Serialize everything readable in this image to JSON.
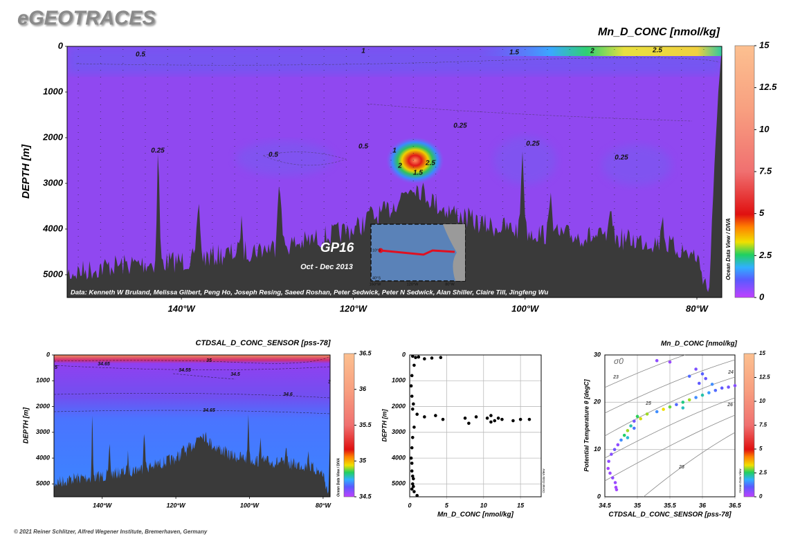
{
  "header": {
    "title": "eGEOTRACES",
    "credit": "© 2021 Reiner Schlitzer, Alfred Wegener Institute, Bremerhaven, Germany"
  },
  "chart_data": [
    {
      "type": "section",
      "title": "Mn_D_CONC [nmol/kg]",
      "ylabel": "DEPTH [m]",
      "xlim": [
        -153.3,
        -77.1
      ],
      "ylim": [
        5500,
        0
      ],
      "xticks": [
        {
          "value": -140,
          "label": "140°W"
        },
        {
          "value": -120,
          "label": "120°W"
        },
        {
          "value": -100,
          "label": "100°W"
        },
        {
          "value": -80,
          "label": "80°W"
        }
      ],
      "yticks": [
        0,
        1000,
        2000,
        3000,
        4000,
        5000
      ],
      "colorbar": {
        "lim": [
          0,
          15
        ],
        "ticks": [
          0,
          2.5,
          5,
          7.5,
          10,
          12.5,
          15
        ]
      },
      "contour_labels": [
        "0.5",
        "1",
        "1.5",
        "2",
        "2.5",
        "0.25",
        "0.25",
        "0.5",
        "0.5",
        "0.25",
        "0.25",
        "1",
        "2",
        "2.5",
        "1.5"
      ],
      "cruise": "GP16",
      "period": "Oct - Dec 2013",
      "credits": "Data: Kenneth W Bruland, Melissa Gilbert, Peng Ho, Joseph Resing, Saeed Roshan, Peter Sedwick, Peter N Sedwick, Alan Shiller, Claire Till, Jingfeng Wu",
      "software": "Ocean Data View / DIVA",
      "map": {
        "labels": [
          "10°S",
          "40°S",
          "160°W",
          "120°W",
          "80°W"
        ]
      }
    },
    {
      "type": "section",
      "title": "CTDSAL_D_CONC_SENSOR [pss-78]",
      "ylabel": "DEPTH [m]",
      "xlim": [
        -153.1,
        -78.1
      ],
      "ylim": [
        5500,
        0
      ],
      "xticks": [
        {
          "value": -140,
          "label": "140°W"
        },
        {
          "value": -120,
          "label": "120°W"
        },
        {
          "value": -100,
          "label": "100°W"
        },
        {
          "value": -80,
          "label": "80°W"
        }
      ],
      "yticks": [
        0,
        1000,
        2000,
        3000,
        4000,
        5000
      ],
      "colorbar": {
        "lim": [
          34.5,
          36.5
        ],
        "ticks": [
          34.5,
          35,
          35.5,
          36,
          36.5
        ]
      },
      "contour_labels": [
        "5",
        "34.65",
        "35",
        "34.55",
        "34.5",
        "34.6",
        "34.65",
        "3"
      ],
      "software": "Ocean Data View / DIVA"
    },
    {
      "type": "scatter",
      "xlabel": "Mn_D_CONC [nmol/kg]",
      "ylabel": "DEPTH [m]",
      "xlim": [
        0,
        17.8
      ],
      "ylim": [
        5500,
        0
      ],
      "xticks": [
        0,
        5,
        10,
        15
      ],
      "yticks": [
        0,
        1000,
        2000,
        3000,
        4000,
        5000
      ],
      "grid": true,
      "software": "Ocean Data View",
      "series": [
        {
          "color": "#000000",
          "x": [
            0.4,
            0.8,
            1.2,
            2.0,
            3.0,
            4.2,
            0.6,
            0.3,
            0.2,
            0.3,
            0.5,
            0.4,
            1.0,
            2.0,
            3.5,
            4.5,
            8,
            9,
            7.5,
            11,
            12,
            11.5,
            12.5,
            14,
            15,
            16.2,
            11,
            10.5,
            0.6,
            0.4,
            0.3,
            0.2,
            0.3,
            0.3,
            0.5,
            0.4,
            0.3,
            0.6,
            1.0,
            0.5,
            0.4
          ],
          "values": [
            50,
            100,
            80,
            150,
            120,
            100,
            400,
            800,
            1200,
            1600,
            1900,
            2100,
            2300,
            2400,
            2350,
            2500,
            2650,
            2400,
            2450,
            2350,
            2450,
            2550,
            2500,
            2550,
            2500,
            2500,
            2600,
            2450,
            2800,
            3200,
            3600,
            4000,
            4200,
            4500,
            4800,
            5000,
            5200,
            5300,
            5450,
            5100,
            4700
          ]
        }
      ]
    },
    {
      "type": "scatter",
      "title": "Mn_D_CONC [nmol/kg]",
      "xlabel": "CTDSAL_D_CONC_SENSOR [pss-78]",
      "ylabel": "Potential Temperature θ [degC]",
      "xlim": [
        34.5,
        36.5
      ],
      "ylim": [
        0,
        30
      ],
      "xticks": [
        34.5,
        35,
        35.5,
        36,
        36.5
      ],
      "yticks": [
        0,
        10,
        20,
        30
      ],
      "colorbar": {
        "lim": [
          0,
          15
        ],
        "ticks": [
          0,
          2.5,
          5,
          7.5,
          10,
          12.5,
          15
        ]
      },
      "sigma_label": "σ0",
      "contour_labels": [
        "23",
        "24",
        "25",
        "26",
        "28"
      ],
      "software": "Ocean Data View",
      "series": [
        {
          "x": [
            34.68,
            34.67,
            34.66,
            34.62,
            34.58,
            34.55,
            34.56,
            34.6,
            34.65,
            34.7,
            34.75,
            34.8,
            34.85,
            34.9,
            34.95,
            35.0,
            35.05,
            35.15,
            35.3,
            35.4,
            35.5,
            35.6,
            35.7,
            35.8,
            35.9,
            36.0,
            36.1,
            36.2,
            36.3,
            36.4,
            36.5,
            35.95,
            36.05,
            36.0,
            35.9,
            35.5,
            35.3,
            35.8,
            34.95,
            34.85,
            36.15,
            35.7
          ],
          "values": [
            1.5,
            2,
            3,
            4,
            5,
            6,
            7.5,
            9,
            10,
            11,
            12,
            13,
            14,
            15,
            16,
            17,
            16.5,
            17.5,
            18,
            18.5,
            19,
            19.5,
            20,
            20.5,
            21,
            21.5,
            22,
            22.5,
            23,
            23.2,
            23.5,
            24,
            25,
            26,
            27,
            28.5,
            28.8,
            25.5,
            14.5,
            12.5,
            23.8,
            18.8
          ],
          "color_values": [
            0.3,
            0.3,
            0.4,
            0.5,
            0.4,
            0.3,
            0.5,
            0.6,
            0.8,
            0.5,
            1.5,
            2.5,
            3,
            2.2,
            0.8,
            2.6,
            3.2,
            3.0,
            1.5,
            3.3,
            2.8,
            1.2,
            2.4,
            3,
            1.5,
            2.2,
            1.6,
            1.2,
            1.0,
            0.8,
            0.6,
            1.0,
            0.9,
            1.1,
            0.7,
            0.4,
            0.5,
            1.2,
            1.3,
            2.0,
            1.5,
            2.1
          ]
        }
      ]
    }
  ]
}
